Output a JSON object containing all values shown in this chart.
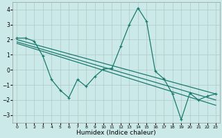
{
  "xlabel": "Humidex (Indice chaleur)",
  "x_ticks": [
    0,
    1,
    2,
    3,
    4,
    5,
    6,
    7,
    8,
    9,
    10,
    11,
    12,
    13,
    14,
    15,
    16,
    17,
    18,
    19,
    20,
    21,
    22,
    23
  ],
  "ylim": [
    -3.5,
    4.5
  ],
  "xlim": [
    -0.5,
    23.5
  ],
  "y_ticks": [
    -3,
    -2,
    -1,
    0,
    1,
    2,
    3,
    4
  ],
  "bg_color": "#cce9e9",
  "line_color": "#1a7a6e",
  "grid_color": "#b0c8c8",
  "line1_x": [
    0,
    1,
    2,
    3,
    4,
    5,
    6,
    7,
    8,
    9,
    10,
    11,
    12,
    13,
    14,
    15,
    16,
    17,
    18,
    19,
    20,
    21,
    22,
    23
  ],
  "line1_y": [
    2.1,
    2.1,
    1.9,
    0.9,
    -0.65,
    -1.35,
    -1.85,
    -0.65,
    -1.1,
    -0.45,
    0.05,
    0.1,
    1.55,
    3.0,
    4.1,
    3.2,
    -0.1,
    -0.6,
    -1.6,
    -3.3,
    -1.55,
    -2.0,
    -1.75,
    -1.6
  ],
  "line2_x": [
    0,
    23
  ],
  "line2_y": [
    2.0,
    -1.6
  ],
  "line3_x": [
    0,
    23
  ],
  "line3_y": [
    1.85,
    -2.0
  ],
  "line4_x": [
    0,
    23
  ],
  "line4_y": [
    1.75,
    -2.35
  ]
}
